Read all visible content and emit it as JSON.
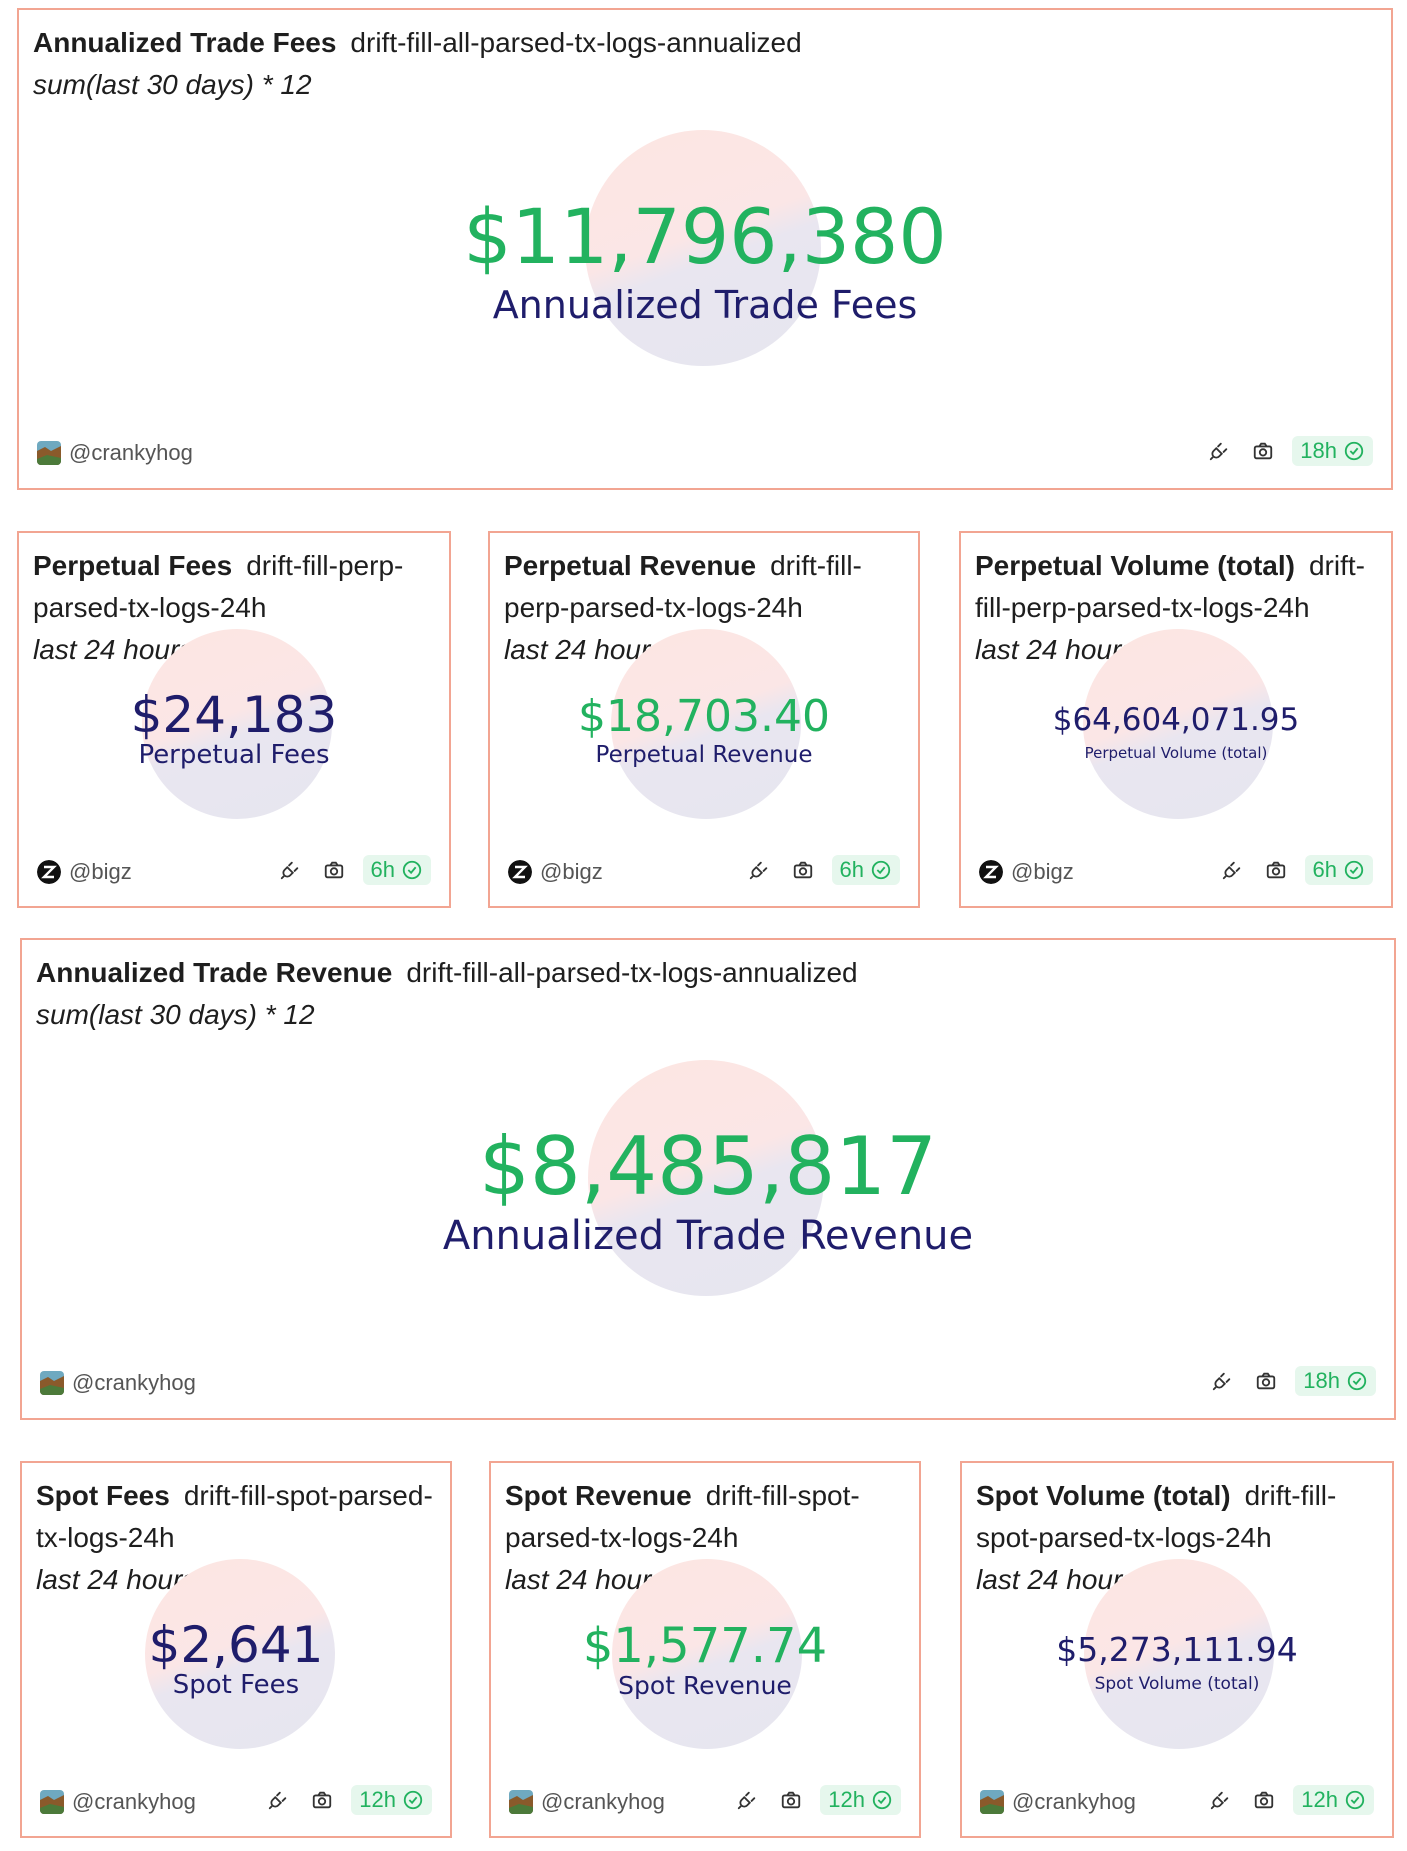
{
  "colors": {
    "border": "#f2a592",
    "green": "#22b25f",
    "navy": "#1f1d6b",
    "badge_bg": "#e6f7ed"
  },
  "cards": {
    "annualized_fees": {
      "title": "Annualized Trade Fees",
      "query": "drift-fill-all-parsed-tx-logs-annualized",
      "subtitle": "sum(last 30 days) * 12",
      "value": "$11,796,380",
      "label": "Annualized Trade Fees",
      "author": "@crankyhog",
      "age": "18h"
    },
    "perp_fees": {
      "title": "Perpetual Fees",
      "query": "drift-fill-perp-parsed-tx-logs-24h",
      "subtitle": "last 24 hours",
      "value": "$24,183",
      "label": "Perpetual Fees",
      "author": "@bigz",
      "age": "6h"
    },
    "perp_revenue": {
      "title": "Perpetual Revenue",
      "query": "drift-fill-perp-parsed-tx-logs-24h",
      "subtitle": "last 24 hours",
      "value": "$18,703.40",
      "label": "Perpetual Revenue",
      "author": "@bigz",
      "age": "6h"
    },
    "perp_volume": {
      "title": "Perpetual Volume (total)",
      "query": "drift-fill-perp-parsed-tx-logs-24h",
      "subtitle": "last 24 hours",
      "value": "$64,604,071.95",
      "label": "Perpetual Volume (total)",
      "author": "@bigz",
      "age": "6h"
    },
    "annualized_revenue": {
      "title": "Annualized Trade Revenue",
      "query": "drift-fill-all-parsed-tx-logs-annualized",
      "subtitle": "sum(last 30 days) * 12",
      "value": "$8,485,817",
      "label": "Annualized Trade Revenue",
      "author": "@crankyhog",
      "age": "18h"
    },
    "spot_fees": {
      "title": "Spot Fees",
      "query": "drift-fill-spot-parsed-tx-logs-24h",
      "subtitle": "last 24 hours",
      "value": "$2,641",
      "label": "Spot Fees",
      "author": "@crankyhog",
      "age": "12h"
    },
    "spot_revenue": {
      "title": "Spot Revenue",
      "query": "drift-fill-spot-parsed-tx-logs-24h",
      "subtitle": "last 24 hours",
      "value": "$1,577.74",
      "label": "Spot Revenue",
      "author": "@crankyhog",
      "age": "12h"
    },
    "spot_volume": {
      "title": "Spot Volume (total)",
      "query": "drift-fill-spot-parsed-tx-logs-24h",
      "subtitle": "last 24 hours",
      "value": "$5,273,111.94",
      "label": "Spot Volume (total)",
      "author": "@crankyhog",
      "age": "12h"
    }
  }
}
